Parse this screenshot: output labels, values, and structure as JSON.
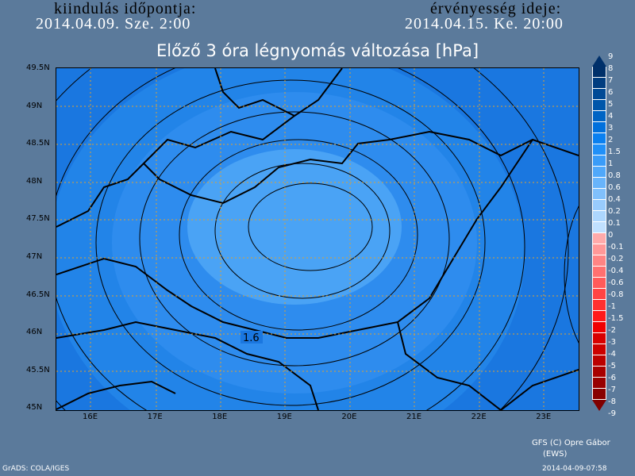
{
  "header": {
    "init_label": "kiindulás időpontja:",
    "init_value": "2014.04.09. Sze. 2:00",
    "valid_label": "érvényesség ideje:",
    "valid_value": "2014.04.15. Ke. 20:00"
  },
  "title": "Előző 3 óra légnyomás változása [hPa]",
  "map": {
    "lat_labels": [
      "49.5N",
      "49N",
      "48.5N",
      "48N",
      "47.5N",
      "47N",
      "46.5N",
      "46N",
      "45.5N",
      "45N"
    ],
    "lon_labels": [
      "16E",
      "17E",
      "18E",
      "19E",
      "20E",
      "21E",
      "22E",
      "23E"
    ],
    "contour_label": "1.6",
    "colors": {
      "outer": "#1a77e0",
      "mid": "#2e8cee",
      "inner": "#4aa3f5",
      "background": "#5b7a9b"
    }
  },
  "colorbar": {
    "levels": [
      "9",
      "8",
      "7",
      "6",
      "5",
      "4",
      "3",
      "2",
      "1.5",
      "1",
      "0.8",
      "0.6",
      "0.4",
      "0.2",
      "0.1",
      "0",
      "-0.1",
      "-0.2",
      "-0.4",
      "-0.6",
      "-0.8",
      "-1",
      "-1.5",
      "-2",
      "-3",
      "-4",
      "-5",
      "-6",
      "-7",
      "-8",
      "-9"
    ],
    "colors": [
      "#00306a",
      "#003d80",
      "#004a96",
      "#0056aa",
      "#0064c4",
      "#0070dc",
      "#0a80f0",
      "#2090f8",
      "#3a9cf8",
      "#50a8fa",
      "#68b4fb",
      "#80c0fc",
      "#98cbfd",
      "#acd6fe",
      "#c0e0ff",
      "#ffaaaa",
      "#ff9898",
      "#ff8484",
      "#ff7070",
      "#ff5a5a",
      "#ff4444",
      "#ff3030",
      "#ff1a1a",
      "#f00000",
      "#d80000",
      "#cc0000",
      "#bb0000",
      "#a80000",
      "#980000",
      "#880000"
    ]
  },
  "footer": {
    "credit": "GFS (C) Opre Gábor",
    "credit2": "(EWS)",
    "grads": "GrADS: COLA/IGES",
    "timestamp": "2014-04-09-07:58"
  }
}
